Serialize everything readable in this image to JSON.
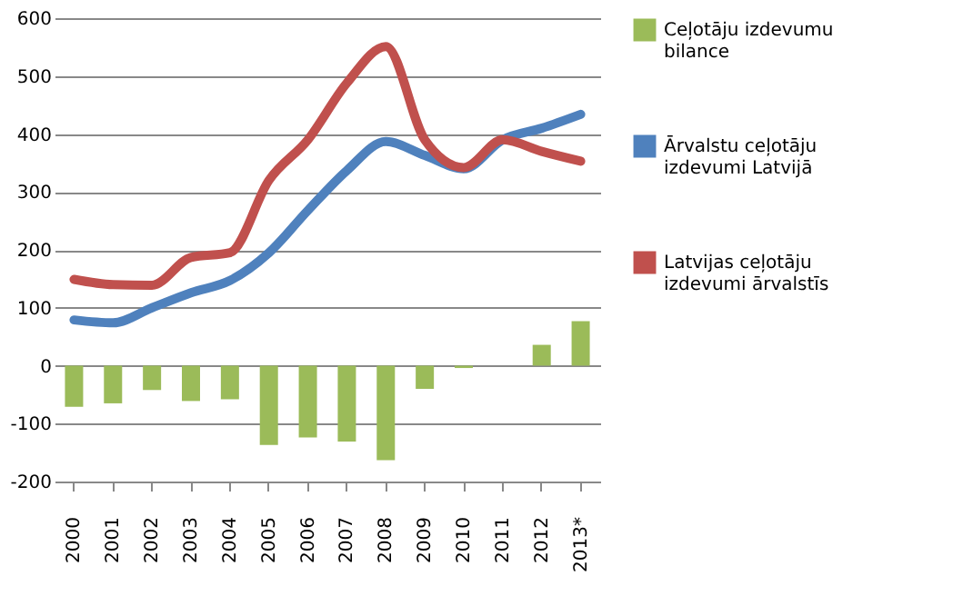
{
  "chart_data": {
    "type": "bar",
    "categories": [
      "2000",
      "2001",
      "2002",
      "2003",
      "2004",
      "2005",
      "2006",
      "2007",
      "2008",
      "2009",
      "2010",
      "2011",
      "2012",
      "2013*"
    ],
    "series": [
      {
        "name": "Ceļotāju izdevumu bilance",
        "color": "#9bbb59",
        "values": [
          -71,
          -65,
          -42,
          -61,
          -58,
          -137,
          -124,
          -131,
          -163,
          -40,
          -4,
          0,
          36,
          77
        ]
      },
      {
        "name": "Ārvalstu ceļotāju izdevumi Latvijā",
        "type": "line",
        "color": "#4f81bd",
        "values": [
          79,
          74,
          100,
          126,
          147,
          195,
          268,
          337,
          387,
          363,
          340,
          390,
          410,
          434
        ]
      },
      {
        "name": "Latvijas ceļotāju izdevumi ārvalstīs",
        "type": "line",
        "color": "#c0504d",
        "values": [
          149,
          140,
          139,
          187,
          195,
          320,
          390,
          488,
          551,
          390,
          342,
          390,
          370,
          353
        ]
      }
    ],
    "ylim": [
      -200,
      600
    ],
    "yticks": [
      -200,
      -100,
      0,
      100,
      200,
      300,
      400,
      500,
      600
    ],
    "grid": "y",
    "legend": "right"
  }
}
